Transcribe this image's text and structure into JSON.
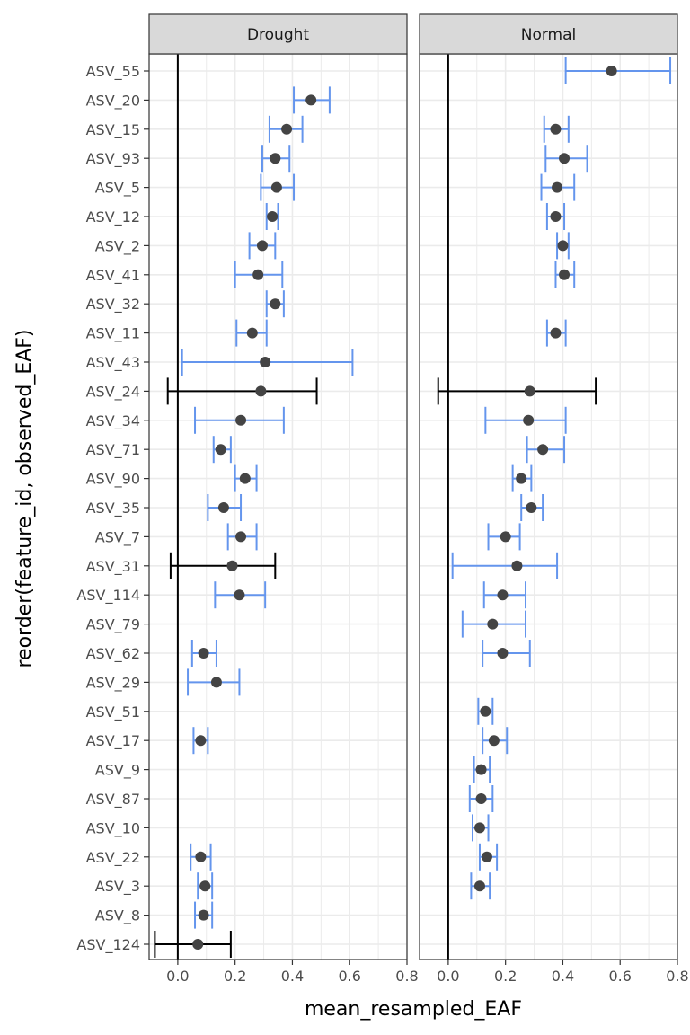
{
  "chart_data": {
    "type": "errorbar-dot",
    "xlabel": "mean_resampled_EAF",
    "ylabel": "reorder(feature_id, observed_EAF)",
    "xlim": [
      -0.1,
      0.8
    ],
    "xticks": [
      0.0,
      0.2,
      0.4,
      0.6,
      0.8
    ],
    "xtick_labels": [
      "0.0",
      "0.2",
      "0.4",
      "0.6",
      "0.8"
    ],
    "reference_line_x": 0,
    "grid": true,
    "colors": {
      "errorbar_crosses_zero": "#000000",
      "errorbar_above_zero": "#6495ed",
      "point": "#444444",
      "strip_fill": "#d9d9d9",
      "grid": "#ebebeb"
    },
    "categories": [
      "ASV_55",
      "ASV_20",
      "ASV_15",
      "ASV_93",
      "ASV_5",
      "ASV_12",
      "ASV_2",
      "ASV_41",
      "ASV_32",
      "ASV_11",
      "ASV_43",
      "ASV_24",
      "ASV_34",
      "ASV_71",
      "ASV_90",
      "ASV_35",
      "ASV_7",
      "ASV_31",
      "ASV_114",
      "ASV_79",
      "ASV_62",
      "ASV_29",
      "ASV_51",
      "ASV_17",
      "ASV_9",
      "ASV_87",
      "ASV_10",
      "ASV_22",
      "ASV_3",
      "ASV_8",
      "ASV_124"
    ],
    "panels": [
      {
        "name": "Drought",
        "points": [
          {
            "id": "ASV_20",
            "mean": 0.465,
            "lo": 0.405,
            "hi": 0.53,
            "crosses_zero": false
          },
          {
            "id": "ASV_15",
            "mean": 0.38,
            "lo": 0.32,
            "hi": 0.435,
            "crosses_zero": false
          },
          {
            "id": "ASV_93",
            "mean": 0.34,
            "lo": 0.295,
            "hi": 0.39,
            "crosses_zero": false
          },
          {
            "id": "ASV_5",
            "mean": 0.345,
            "lo": 0.29,
            "hi": 0.405,
            "crosses_zero": false
          },
          {
            "id": "ASV_12",
            "mean": 0.33,
            "lo": 0.31,
            "hi": 0.35,
            "crosses_zero": false
          },
          {
            "id": "ASV_2",
            "mean": 0.295,
            "lo": 0.25,
            "hi": 0.34,
            "crosses_zero": false
          },
          {
            "id": "ASV_41",
            "mean": 0.28,
            "lo": 0.2,
            "hi": 0.365,
            "crosses_zero": false
          },
          {
            "id": "ASV_32",
            "mean": 0.34,
            "lo": 0.31,
            "hi": 0.37,
            "crosses_zero": false
          },
          {
            "id": "ASV_11",
            "mean": 0.26,
            "lo": 0.205,
            "hi": 0.31,
            "crosses_zero": false
          },
          {
            "id": "ASV_43",
            "mean": 0.305,
            "lo": 0.015,
            "hi": 0.61,
            "crosses_zero": false
          },
          {
            "id": "ASV_24",
            "mean": 0.29,
            "lo": -0.035,
            "hi": 0.485,
            "crosses_zero": true
          },
          {
            "id": "ASV_34",
            "mean": 0.22,
            "lo": 0.06,
            "hi": 0.37,
            "crosses_zero": false
          },
          {
            "id": "ASV_71",
            "mean": 0.15,
            "lo": 0.125,
            "hi": 0.185,
            "crosses_zero": false
          },
          {
            "id": "ASV_90",
            "mean": 0.235,
            "lo": 0.2,
            "hi": 0.275,
            "crosses_zero": false
          },
          {
            "id": "ASV_35",
            "mean": 0.16,
            "lo": 0.105,
            "hi": 0.22,
            "crosses_zero": false
          },
          {
            "id": "ASV_7",
            "mean": 0.22,
            "lo": 0.175,
            "hi": 0.275,
            "crosses_zero": false
          },
          {
            "id": "ASV_31",
            "mean": 0.19,
            "lo": -0.025,
            "hi": 0.34,
            "crosses_zero": true
          },
          {
            "id": "ASV_114",
            "mean": 0.215,
            "lo": 0.13,
            "hi": 0.305,
            "crosses_zero": false
          },
          {
            "id": "ASV_62",
            "mean": 0.09,
            "lo": 0.05,
            "hi": 0.135,
            "crosses_zero": false
          },
          {
            "id": "ASV_29",
            "mean": 0.135,
            "lo": 0.035,
            "hi": 0.215,
            "crosses_zero": false
          },
          {
            "id": "ASV_17",
            "mean": 0.08,
            "lo": 0.055,
            "hi": 0.105,
            "crosses_zero": false
          },
          {
            "id": "ASV_22",
            "mean": 0.08,
            "lo": 0.045,
            "hi": 0.115,
            "crosses_zero": false
          },
          {
            "id": "ASV_3",
            "mean": 0.095,
            "lo": 0.07,
            "hi": 0.12,
            "crosses_zero": false
          },
          {
            "id": "ASV_8",
            "mean": 0.09,
            "lo": 0.06,
            "hi": 0.12,
            "crosses_zero": false
          },
          {
            "id": "ASV_124",
            "mean": 0.07,
            "lo": -0.08,
            "hi": 0.185,
            "crosses_zero": true
          }
        ]
      },
      {
        "name": "Normal",
        "points": [
          {
            "id": "ASV_55",
            "mean": 0.57,
            "lo": 0.41,
            "hi": 0.775,
            "crosses_zero": false
          },
          {
            "id": "ASV_15",
            "mean": 0.375,
            "lo": 0.335,
            "hi": 0.42,
            "crosses_zero": false
          },
          {
            "id": "ASV_93",
            "mean": 0.405,
            "lo": 0.34,
            "hi": 0.485,
            "crosses_zero": false
          },
          {
            "id": "ASV_5",
            "mean": 0.38,
            "lo": 0.325,
            "hi": 0.44,
            "crosses_zero": false
          },
          {
            "id": "ASV_12",
            "mean": 0.375,
            "lo": 0.345,
            "hi": 0.405,
            "crosses_zero": false
          },
          {
            "id": "ASV_2",
            "mean": 0.4,
            "lo": 0.38,
            "hi": 0.42,
            "crosses_zero": false
          },
          {
            "id": "ASV_41",
            "mean": 0.405,
            "lo": 0.375,
            "hi": 0.44,
            "crosses_zero": false
          },
          {
            "id": "ASV_11",
            "mean": 0.375,
            "lo": 0.345,
            "hi": 0.41,
            "crosses_zero": false
          },
          {
            "id": "ASV_24",
            "mean": 0.285,
            "lo": -0.035,
            "hi": 0.515,
            "crosses_zero": true
          },
          {
            "id": "ASV_34",
            "mean": 0.28,
            "lo": 0.13,
            "hi": 0.41,
            "crosses_zero": false
          },
          {
            "id": "ASV_71",
            "mean": 0.33,
            "lo": 0.275,
            "hi": 0.405,
            "crosses_zero": false
          },
          {
            "id": "ASV_90",
            "mean": 0.255,
            "lo": 0.225,
            "hi": 0.29,
            "crosses_zero": false
          },
          {
            "id": "ASV_35",
            "mean": 0.29,
            "lo": 0.255,
            "hi": 0.33,
            "crosses_zero": false
          },
          {
            "id": "ASV_7",
            "mean": 0.2,
            "lo": 0.14,
            "hi": 0.25,
            "crosses_zero": false
          },
          {
            "id": "ASV_31",
            "mean": 0.24,
            "lo": 0.015,
            "hi": 0.38,
            "crosses_zero": false
          },
          {
            "id": "ASV_114",
            "mean": 0.19,
            "lo": 0.125,
            "hi": 0.27,
            "crosses_zero": false
          },
          {
            "id": "ASV_79",
            "mean": 0.155,
            "lo": 0.05,
            "hi": 0.27,
            "crosses_zero": false
          },
          {
            "id": "ASV_62",
            "mean": 0.19,
            "lo": 0.12,
            "hi": 0.285,
            "crosses_zero": false
          },
          {
            "id": "ASV_51",
            "mean": 0.13,
            "lo": 0.105,
            "hi": 0.155,
            "crosses_zero": false
          },
          {
            "id": "ASV_17",
            "mean": 0.16,
            "lo": 0.12,
            "hi": 0.205,
            "crosses_zero": false
          },
          {
            "id": "ASV_9",
            "mean": 0.115,
            "lo": 0.09,
            "hi": 0.145,
            "crosses_zero": false
          },
          {
            "id": "ASV_87",
            "mean": 0.115,
            "lo": 0.075,
            "hi": 0.155,
            "crosses_zero": false
          },
          {
            "id": "ASV_10",
            "mean": 0.11,
            "lo": 0.085,
            "hi": 0.14,
            "crosses_zero": false
          },
          {
            "id": "ASV_22",
            "mean": 0.135,
            "lo": 0.11,
            "hi": 0.17,
            "crosses_zero": false
          },
          {
            "id": "ASV_3",
            "mean": 0.11,
            "lo": 0.08,
            "hi": 0.145,
            "crosses_zero": false
          }
        ]
      }
    ]
  }
}
